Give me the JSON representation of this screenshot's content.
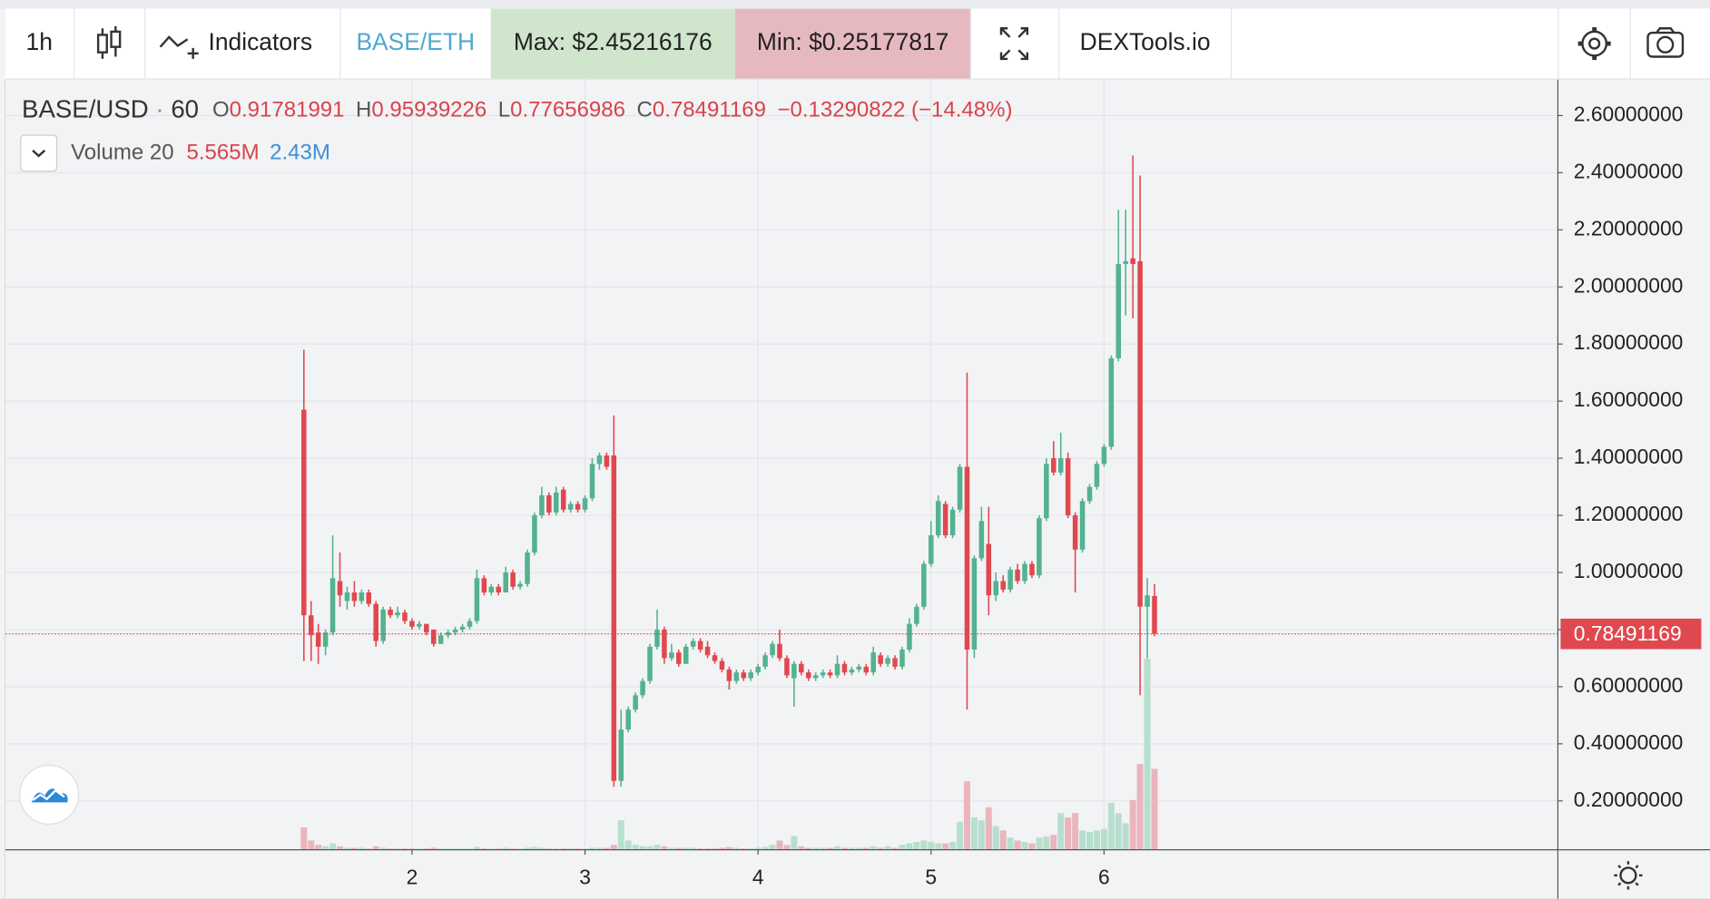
{
  "toolbar": {
    "interval": "1h",
    "indicators": "Indicators",
    "pair": "BASE/ETH",
    "max": "Max: $2.45216176",
    "min": "Min: $0.25177817",
    "site": "DEXTools.io"
  },
  "chart_data": {
    "type": "candlestick",
    "symbol": "BASE/USD",
    "separator": "·",
    "interval": "60",
    "ohlc_legend": {
      "o_label": "O",
      "o": "0.91781991",
      "h_label": "H",
      "h": "0.95939226",
      "l_label": "L",
      "l": "0.77656986",
      "c_label": "C",
      "c": "0.78491169",
      "change": "−0.13290822 (−14.48%)"
    },
    "volume_legend": {
      "value": "5.565M",
      "ma": "2.43M"
    },
    "last_price_label": "0.78491169",
    "x": [
      1.375,
      1.4167,
      1.4583,
      1.5,
      1.5417,
      1.5833,
      1.625,
      1.6667,
      1.7083,
      1.75,
      1.7917,
      1.8333,
      1.875,
      1.9167,
      1.9583,
      2,
      2.0417,
      2.0833,
      2.125,
      2.1667,
      2.2083,
      2.25,
      2.2917,
      2.3333,
      2.375,
      2.4167,
      2.4583,
      2.5,
      2.5417,
      2.5833,
      2.625,
      2.6667,
      2.7083,
      2.75,
      2.7917,
      2.8333,
      2.875,
      2.9167,
      2.9583,
      3,
      3.0417,
      3.0833,
      3.125,
      3.1667,
      3.2083,
      3.25,
      3.2917,
      3.3333,
      3.375,
      3.4167,
      3.4583,
      3.5,
      3.5417,
      3.5833,
      3.625,
      3.6667,
      3.7083,
      3.75,
      3.7917,
      3.8333,
      3.875,
      3.9167,
      3.9583,
      4,
      4.0417,
      4.0833,
      4.125,
      4.1667,
      4.2083,
      4.25,
      4.2917,
      4.3333,
      4.375,
      4.4167,
      4.4583,
      4.5,
      4.5417,
      4.5833,
      4.625,
      4.6667,
      4.7083,
      4.75,
      4.7917,
      4.8333,
      4.875,
      4.9167,
      4.9583,
      5,
      5.0417,
      5.0833,
      5.125,
      5.1667,
      5.2083,
      5.25,
      5.2917,
      5.3333,
      5.375,
      5.4167,
      5.4583,
      5.5,
      5.5417,
      5.5833,
      5.625,
      5.6667,
      5.7083,
      5.75,
      5.7917,
      5.8333,
      5.875,
      5.9167,
      5.9583,
      6,
      6.0417,
      6.0833,
      6.125,
      6.1667,
      6.2083,
      6.25,
      6.2917
    ],
    "series": [
      {
        "name": "BASE/USD",
        "up_color": "#53b28f",
        "down_color": "#e0484f",
        "open": [
          1.57,
          0.85,
          0.79,
          0.74,
          0.79,
          0.97,
          0.9,
          0.93,
          0.9,
          0.93,
          0.89,
          0.76,
          0.87,
          0.85,
          0.86,
          0.83,
          0.81,
          0.82,
          0.8,
          0.75,
          0.78,
          0.79,
          0.8,
          0.81,
          0.83,
          0.98,
          0.93,
          0.95,
          0.93,
          1.0,
          0.95,
          0.96,
          1.07,
          1.2,
          1.27,
          1.21,
          1.29,
          1.22,
          1.24,
          1.22,
          1.26,
          1.38,
          1.41,
          1.41,
          0.27,
          0.45,
          0.52,
          0.57,
          0.62,
          0.74,
          0.8,
          0.7,
          0.72,
          0.68,
          0.74,
          0.76,
          0.74,
          0.71,
          0.69,
          0.66,
          0.62,
          0.65,
          0.63,
          0.65,
          0.67,
          0.71,
          0.75,
          0.7,
          0.63,
          0.68,
          0.65,
          0.63,
          0.64,
          0.65,
          0.64,
          0.68,
          0.65,
          0.66,
          0.67,
          0.65,
          0.71,
          0.68,
          0.7,
          0.67,
          0.73,
          0.82,
          0.88,
          1.03,
          1.13,
          1.24,
          1.13,
          1.22,
          1.37,
          0.73,
          1.05,
          1.1,
          0.92,
          0.97,
          0.94,
          1.01,
          0.97,
          1.03,
          0.99,
          1.19,
          1.4,
          1.35,
          1.4,
          1.2,
          1.08,
          1.25,
          1.3,
          1.38,
          1.44,
          1.75,
          2.08,
          2.1,
          2.09,
          0.88,
          0.91781991
        ],
        "high": [
          1.78,
          0.9,
          0.82,
          0.8,
          1.13,
          1.07,
          0.95,
          0.97,
          0.94,
          0.94,
          0.9,
          0.88,
          0.88,
          0.88,
          0.87,
          0.84,
          0.83,
          0.82,
          0.8,
          0.79,
          0.8,
          0.81,
          0.82,
          0.84,
          1.01,
          0.99,
          0.96,
          0.96,
          1.02,
          1.01,
          0.97,
          1.08,
          1.21,
          1.3,
          1.28,
          1.3,
          1.3,
          1.25,
          1.25,
          1.27,
          1.4,
          1.42,
          1.42,
          1.55,
          0.52,
          0.53,
          0.58,
          0.63,
          0.75,
          0.87,
          0.81,
          0.75,
          0.73,
          0.75,
          0.77,
          0.77,
          0.76,
          0.72,
          0.7,
          0.67,
          0.66,
          0.66,
          0.66,
          0.68,
          0.72,
          0.76,
          0.8,
          0.71,
          0.69,
          0.69,
          0.66,
          0.65,
          0.66,
          0.66,
          0.71,
          0.69,
          0.67,
          0.68,
          0.68,
          0.74,
          0.72,
          0.71,
          0.71,
          0.74,
          0.84,
          0.89,
          1.04,
          1.18,
          1.27,
          1.25,
          1.23,
          1.38,
          1.7,
          1.06,
          1.23,
          1.23,
          1.0,
          0.99,
          1.02,
          1.03,
          1.04,
          1.04,
          1.2,
          1.4,
          1.46,
          1.49,
          1.42,
          1.21,
          1.26,
          1.31,
          1.39,
          1.45,
          1.76,
          2.27,
          2.27,
          2.46,
          2.39,
          0.98,
          0.95939226
        ],
        "low": [
          0.69,
          0.69,
          0.68,
          0.71,
          0.78,
          0.88,
          0.87,
          0.88,
          0.89,
          0.88,
          0.74,
          0.75,
          0.84,
          0.84,
          0.82,
          0.8,
          0.8,
          0.78,
          0.74,
          0.75,
          0.77,
          0.78,
          0.79,
          0.8,
          0.82,
          0.92,
          0.92,
          0.92,
          0.93,
          0.94,
          0.94,
          0.95,
          1.06,
          1.19,
          1.2,
          1.2,
          1.21,
          1.21,
          1.21,
          1.21,
          1.25,
          1.36,
          1.36,
          0.25,
          0.25,
          0.44,
          0.51,
          0.56,
          0.61,
          0.73,
          0.68,
          0.69,
          0.67,
          0.68,
          0.73,
          0.72,
          0.7,
          0.68,
          0.65,
          0.59,
          0.61,
          0.62,
          0.62,
          0.64,
          0.66,
          0.7,
          0.69,
          0.63,
          0.53,
          0.64,
          0.62,
          0.62,
          0.63,
          0.63,
          0.63,
          0.64,
          0.64,
          0.65,
          0.64,
          0.64,
          0.67,
          0.67,
          0.66,
          0.66,
          0.72,
          0.81,
          0.87,
          1.02,
          1.12,
          1.12,
          1.12,
          1.21,
          0.52,
          0.7,
          1.04,
          0.85,
          0.9,
          0.93,
          0.93,
          0.96,
          0.96,
          0.98,
          0.98,
          1.18,
          1.34,
          1.34,
          1.19,
          0.93,
          1.07,
          1.24,
          1.29,
          1.37,
          1.43,
          1.74,
          1.9,
          1.89,
          0.57,
          0.7,
          0.77656986
        ],
        "close": [
          0.85,
          0.78,
          0.74,
          0.79,
          0.98,
          0.92,
          0.93,
          0.9,
          0.93,
          0.89,
          0.76,
          0.87,
          0.85,
          0.86,
          0.83,
          0.81,
          0.82,
          0.79,
          0.75,
          0.78,
          0.79,
          0.8,
          0.81,
          0.83,
          0.98,
          0.93,
          0.95,
          0.93,
          1.0,
          0.95,
          0.96,
          1.07,
          1.2,
          1.27,
          1.21,
          1.28,
          1.22,
          1.24,
          1.22,
          1.26,
          1.38,
          1.41,
          1.37,
          0.27,
          0.45,
          0.52,
          0.57,
          0.62,
          0.74,
          0.8,
          0.7,
          0.72,
          0.68,
          0.74,
          0.76,
          0.73,
          0.71,
          0.69,
          0.66,
          0.62,
          0.65,
          0.63,
          0.65,
          0.67,
          0.71,
          0.75,
          0.7,
          0.64,
          0.68,
          0.65,
          0.63,
          0.64,
          0.65,
          0.64,
          0.68,
          0.65,
          0.66,
          0.67,
          0.65,
          0.72,
          0.68,
          0.7,
          0.67,
          0.73,
          0.82,
          0.88,
          1.03,
          1.13,
          1.25,
          1.13,
          1.22,
          1.37,
          0.73,
          1.05,
          1.18,
          0.92,
          0.97,
          0.94,
          1.01,
          0.97,
          1.03,
          0.99,
          1.19,
          1.38,
          1.35,
          1.4,
          1.2,
          1.08,
          1.25,
          1.3,
          1.38,
          1.44,
          1.75,
          2.08,
          2.09,
          2.08,
          0.88,
          0.92,
          0.78491169
        ]
      },
      {
        "name": "Volume 20",
        "axis": "y2",
        "up_color": "#b7dfcd",
        "down_color": "#eab5bd",
        "values": [
          1.5,
          0.6,
          0.3,
          0.2,
          0.4,
          0.2,
          0.1,
          0.1,
          0.1,
          0.05,
          0.2,
          0.1,
          0.05,
          0.05,
          0.05,
          0.05,
          0.05,
          0.05,
          0.1,
          0.05,
          0.05,
          0.05,
          0.05,
          0.05,
          0.15,
          0.05,
          0.05,
          0.05,
          0.1,
          0.05,
          0.05,
          0.1,
          0.15,
          0.1,
          0.05,
          0.05,
          0.05,
          0.05,
          0.05,
          0.05,
          0.1,
          0.1,
          0.1,
          0.3,
          2.0,
          0.6,
          0.3,
          0.2,
          0.2,
          0.3,
          0.2,
          0.1,
          0.1,
          0.1,
          0.1,
          0.05,
          0.05,
          0.05,
          0.1,
          0.15,
          0.1,
          0.05,
          0.05,
          0.1,
          0.15,
          0.3,
          0.6,
          0.3,
          0.9,
          0.2,
          0.1,
          0.1,
          0.1,
          0.1,
          0.2,
          0.1,
          0.1,
          0.1,
          0.1,
          0.2,
          0.1,
          0.2,
          0.1,
          0.3,
          0.4,
          0.5,
          0.6,
          0.5,
          0.4,
          0.4,
          0.5,
          1.9,
          4.7,
          2.2,
          2.0,
          2.9,
          1.6,
          1.3,
          0.8,
          0.6,
          0.5,
          0.4,
          0.8,
          0.9,
          1.0,
          2.5,
          2.2,
          2.5,
          1.3,
          1.2,
          1.3,
          1.4,
          3.2,
          2.5,
          1.8,
          3.4,
          5.9,
          13.2,
          5.565
        ]
      }
    ],
    "xlim": [
      -0.35,
      8.62
    ],
    "xticks": [
      2,
      3,
      4,
      5,
      6
    ],
    "ylim": [
      0.031,
      2.726
    ],
    "yticks": [
      {
        "value": 0.2,
        "label": "0.20000000"
      },
      {
        "value": 0.4,
        "label": "0.40000000"
      },
      {
        "value": 0.6,
        "label": "0.60000000"
      },
      {
        "value": 0.8,
        "label": "0.80000000"
      },
      {
        "value": 1.0,
        "label": "1.00000000"
      },
      {
        "value": 1.2,
        "label": "1.20000000"
      },
      {
        "value": 1.4,
        "label": "1.40000000"
      },
      {
        "value": 1.6,
        "label": "1.60000000"
      },
      {
        "value": 1.8,
        "label": "1.80000000"
      },
      {
        "value": 2.0,
        "label": "2.00000000"
      },
      {
        "value": 2.2,
        "label": "2.20000000"
      },
      {
        "value": 2.4,
        "label": "2.40000000"
      },
      {
        "value": 2.6,
        "label": "2.60000000"
      }
    ],
    "y2lim": [
      0,
      53.3
    ],
    "grid": true
  }
}
